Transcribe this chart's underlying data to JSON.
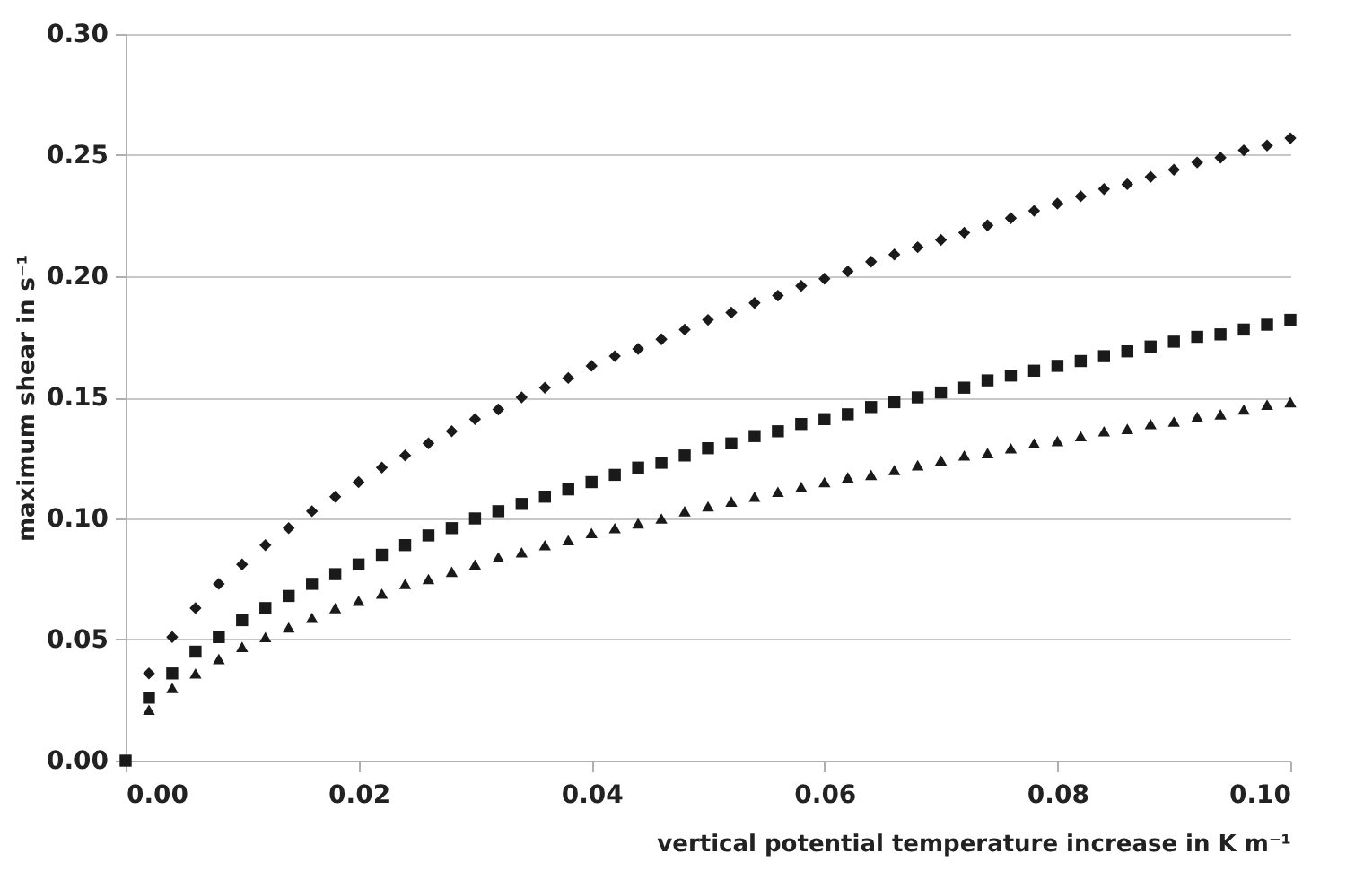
{
  "chart_data": {
    "type": "scatter",
    "xlabel": "vertical potential temperature increase in K m⁻¹",
    "ylabel": "maximum shear in s⁻¹",
    "x": [
      0,
      0.002,
      0.004,
      0.006,
      0.008,
      0.01,
      0.012,
      0.014,
      0.016,
      0.018,
      0.02,
      0.022,
      0.024,
      0.026,
      0.028,
      0.03,
      0.032,
      0.034,
      0.036,
      0.038,
      0.04,
      0.042,
      0.044,
      0.046,
      0.048,
      0.05,
      0.052,
      0.054,
      0.056,
      0.058,
      0.06,
      0.062,
      0.064,
      0.066,
      0.068,
      0.07,
      0.072,
      0.074,
      0.076,
      0.078,
      0.08,
      0.082,
      0.084,
      0.086,
      0.088,
      0.09,
      0.092,
      0.094,
      0.096,
      0.098,
      0.1
    ],
    "series": [
      {
        "color": "#1a1a1a",
        "marker": "diamond",
        "values": [
          null,
          0.036,
          0.051,
          0.063,
          0.073,
          0.081,
          0.089,
          0.096,
          0.103,
          0.109,
          0.115,
          0.121,
          0.126,
          0.131,
          0.136,
          0.141,
          0.145,
          0.15,
          0.154,
          0.158,
          0.163,
          0.167,
          0.17,
          0.174,
          0.178,
          0.182,
          0.185,
          0.189,
          0.192,
          0.196,
          0.199,
          0.202,
          0.206,
          0.209,
          0.212,
          0.215,
          0.218,
          0.221,
          0.224,
          0.227,
          0.23,
          0.233,
          0.236,
          0.238,
          0.241,
          0.244,
          0.247,
          0.249,
          0.252,
          0.254,
          0.257
        ]
      },
      {
        "color": "#1a1a1a",
        "marker": "square",
        "values": [
          0,
          0.026,
          0.036,
          0.045,
          0.051,
          0.058,
          0.063,
          0.068,
          0.073,
          0.077,
          0.081,
          0.085,
          0.089,
          0.093,
          0.096,
          0.1,
          0.103,
          0.106,
          0.109,
          0.112,
          0.115,
          0.118,
          0.121,
          0.123,
          0.126,
          0.129,
          0.131,
          0.134,
          0.136,
          0.139,
          0.141,
          0.143,
          0.146,
          0.148,
          0.15,
          0.152,
          0.154,
          0.157,
          0.159,
          0.161,
          0.163,
          0.165,
          0.167,
          0.169,
          0.171,
          0.173,
          0.175,
          0.176,
          0.178,
          0.18,
          0.182
        ]
      },
      {
        "color": "#1a1a1a",
        "marker": "triangle",
        "values": [
          null,
          0.021,
          0.03,
          0.036,
          0.042,
          0.047,
          0.051,
          0.055,
          0.059,
          0.063,
          0.066,
          0.069,
          0.073,
          0.075,
          0.078,
          0.081,
          0.084,
          0.086,
          0.089,
          0.091,
          0.094,
          0.096,
          0.098,
          0.1,
          0.103,
          0.105,
          0.107,
          0.109,
          0.111,
          0.113,
          0.115,
          0.117,
          0.118,
          0.12,
          0.122,
          0.124,
          0.126,
          0.127,
          0.129,
          0.131,
          0.132,
          0.134,
          0.136,
          0.137,
          0.139,
          0.14,
          0.142,
          0.143,
          0.145,
          0.147,
          0.148
        ]
      }
    ],
    "xlim": [
      0,
      0.1
    ],
    "xticks": [
      {
        "value": 0,
        "label": "0.00"
      },
      {
        "value": 0.02,
        "label": "0.02"
      },
      {
        "value": 0.04,
        "label": "0.04"
      },
      {
        "value": 0.06,
        "label": "0.06"
      },
      {
        "value": 0.08,
        "label": "0.08"
      },
      {
        "value": 0.1,
        "label": "0.10"
      }
    ],
    "ylim": [
      0,
      0.3
    ],
    "yticks": [
      {
        "value": 0,
        "label": "0.00"
      },
      {
        "value": 0.05,
        "label": "0.05"
      },
      {
        "value": 0.1,
        "label": "0.10"
      },
      {
        "value": 0.15,
        "label": "0.15"
      },
      {
        "value": 0.2,
        "label": "0.20"
      },
      {
        "value": 0.25,
        "label": "0.25"
      },
      {
        "value": 0.3,
        "label": "0.30"
      }
    ],
    "grid": "y"
  }
}
